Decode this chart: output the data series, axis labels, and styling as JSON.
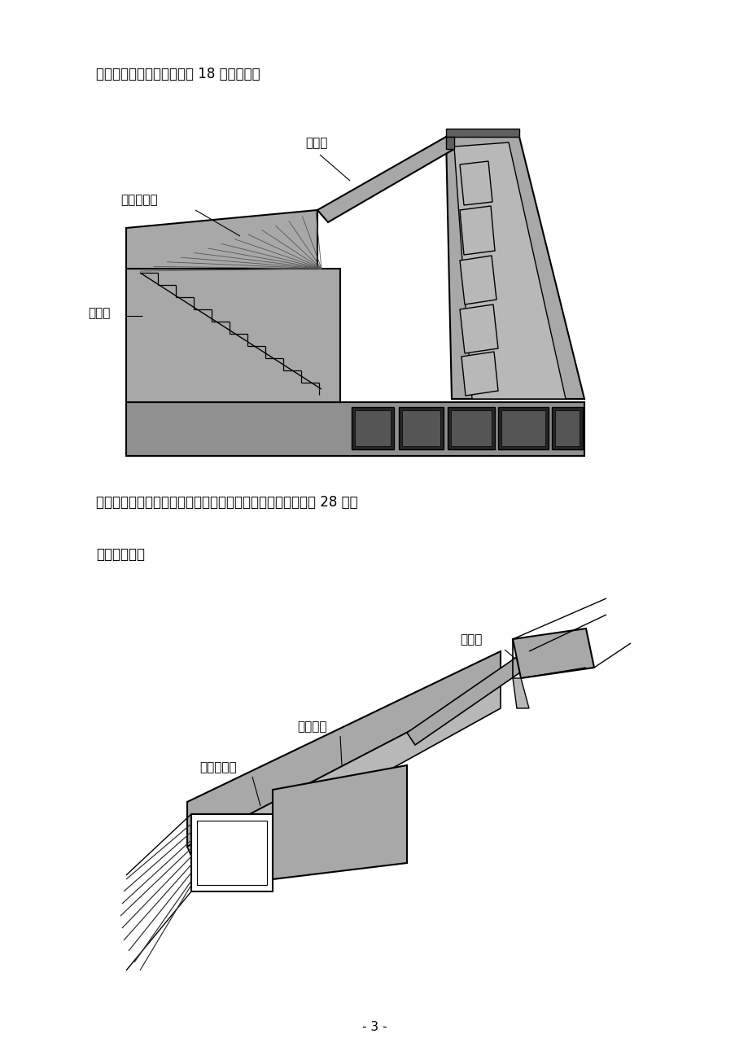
{
  "background_color": "#ffffff",
  "text1": "室四部分。预应力孔道长约 18 米，如图：",
  "text2": "而南锚锚体受场地限制，设置成隧道锚形式。预应力孔道长约 28 米。",
  "text3": "南锚碇如图：",
  "page_number": "- 3 -",
  "label_qianmaoshu": "前锚室",
  "label_yuyingli": "预应力管道",
  "label_houmaoshu": "后锚室",
  "label_shousuo": "首锚室",
  "label_datijiaodui": "大体积砼",
  "label_yuyingli2": "预应力管道",
  "gray_main": "#a8a8a8",
  "gray_dark": "#888888",
  "gray_panel": "#b8b8b8",
  "gray_base": "#909090",
  "black": "#000000",
  "white": "#ffffff",
  "dark_slot": "#252525"
}
